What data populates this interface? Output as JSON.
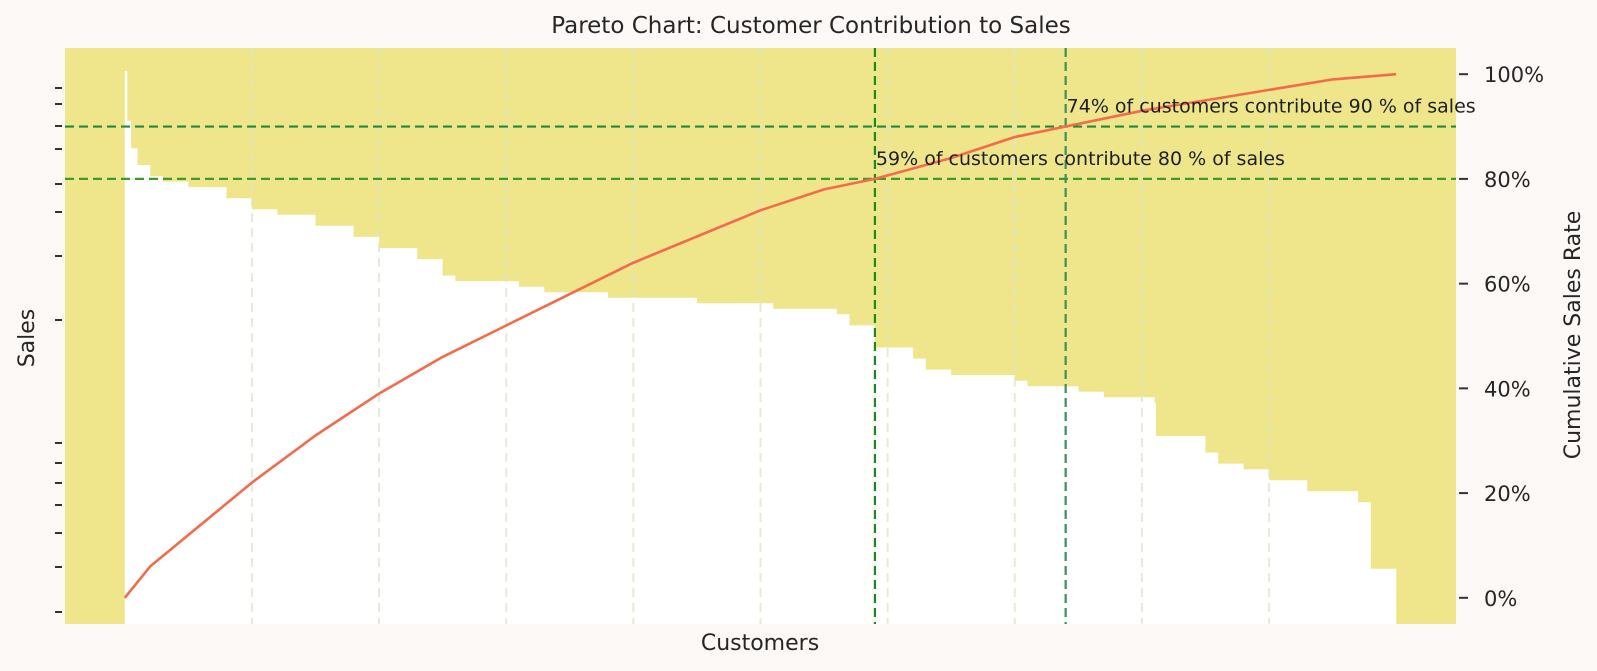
{
  "chart_data": {
    "type": "pareto",
    "title": "Pareto Chart: Customer Contribution to Sales",
    "xlabel": "Customers",
    "ylabel_left": "Sales",
    "ylabel_right": "Cumulative Sales Rate",
    "right_ticks": [
      "0%",
      "20%",
      "40%",
      "60%",
      "80%",
      "100%"
    ],
    "right_tick_values": [
      0,
      20,
      40,
      60,
      80,
      100
    ],
    "right_ylim": [
      -5,
      105
    ],
    "x_range": [
      -0.047,
      1.047
    ],
    "colors": {
      "plot_background": "#efe68c",
      "bars": "#ffffff",
      "cumulative_line": "#f46a4a",
      "threshold_80": "#3f9a2c",
      "threshold_90": "#1e8a3c",
      "vertical_59": "#1a8a1a",
      "vertical_74": "#3a8f5c",
      "grid": "#d8e8c8"
    },
    "grid_x_fractions": [
      0.1,
      0.2,
      0.3,
      0.4,
      0.5,
      0.6,
      0.7,
      0.8,
      0.9
    ],
    "bars_profile": {
      "description_free_heights": true,
      "x": [
        0,
        0.002,
        0.005,
        0.01,
        0.02,
        0.03,
        0.05,
        0.08,
        0.1,
        0.12,
        0.15,
        0.18,
        0.2,
        0.23,
        0.25,
        0.26,
        0.3,
        0.31,
        0.33,
        0.35,
        0.38,
        0.4,
        0.45,
        0.5,
        0.51,
        0.55,
        0.56,
        0.57,
        0.59,
        0.61,
        0.62,
        0.63,
        0.65,
        0.7,
        0.71,
        0.74,
        0.75,
        0.77,
        0.78,
        0.81,
        0.811,
        0.84,
        0.85,
        0.86,
        0.88,
        0.9,
        0.91,
        0.93,
        0.96,
        0.97,
        0.98,
        1.0
      ],
      "sales": [
        100,
        91,
        86,
        83,
        81,
        80,
        79,
        77,
        75,
        74,
        72,
        70,
        68,
        66,
        63,
        62,
        62,
        61,
        60,
        60,
        59,
        59,
        58,
        58,
        57,
        57,
        56,
        54,
        50,
        50,
        48,
        46,
        45,
        44,
        43,
        43,
        42,
        41,
        41,
        40,
        34,
        34,
        31,
        29,
        28,
        26,
        26,
        24,
        24,
        22,
        10,
        10
      ]
    },
    "cumulative_sales_rate": {
      "x": [
        0,
        0.02,
        0.05,
        0.1,
        0.15,
        0.2,
        0.25,
        0.3,
        0.35,
        0.4,
        0.45,
        0.5,
        0.55,
        0.59,
        0.65,
        0.7,
        0.74,
        0.8,
        0.85,
        0.9,
        0.95,
        1.0
      ],
      "y": [
        0,
        6,
        12,
        22,
        31,
        39,
        46,
        52,
        58,
        64,
        69,
        74,
        78,
        80,
        84,
        88,
        90,
        93,
        95,
        97,
        99,
        100
      ]
    },
    "thresholds": [
      {
        "rate": 80,
        "customers_fraction": 0.59,
        "annotation": "59% of customers contribute 80 % of sales"
      },
      {
        "rate": 90,
        "customers_fraction": 0.74,
        "annotation": "74% of customers contribute 90 % of sales"
      }
    ]
  }
}
